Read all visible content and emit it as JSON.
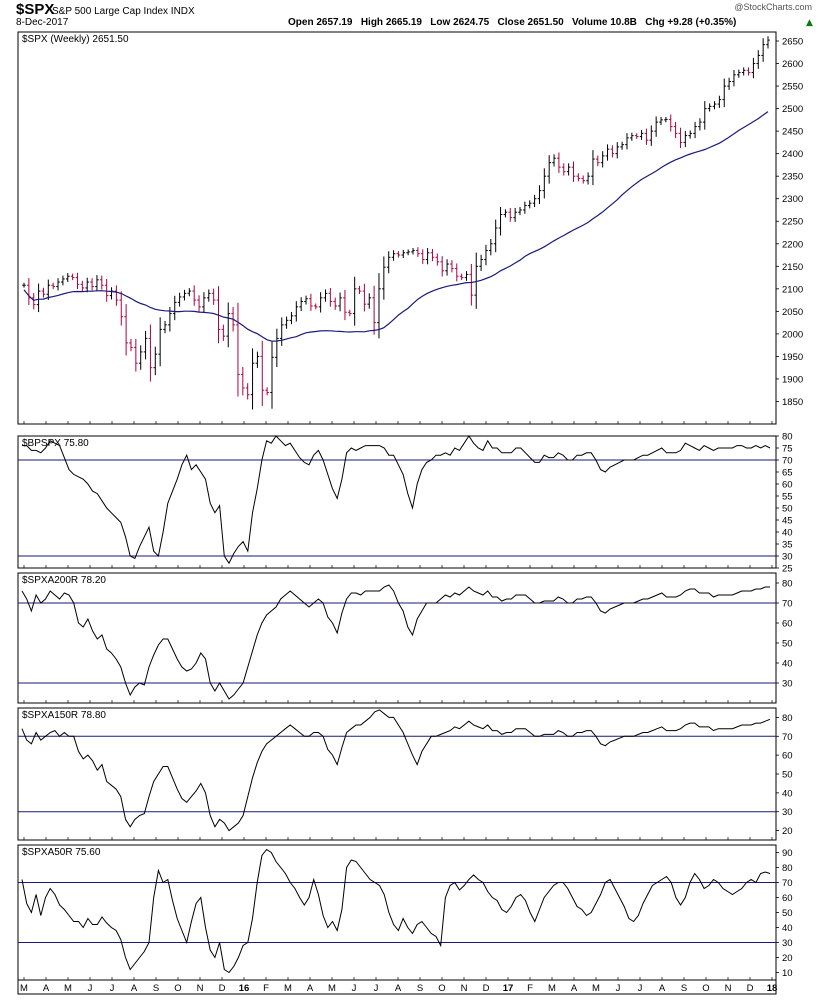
{
  "header": {
    "symbol": "$SPX",
    "name": "S&P 500 Large Cap Index",
    "exchange": "INDX",
    "date": "8-Dec-2017",
    "watermark": "@StockCharts.com",
    "ohlc": "Open 2657.19   High 2665.19   Low 2624.75   Close 2651.50   Volume 10.8B   Chg +9.28 (+0.35%)"
  },
  "colors": {
    "up": "#000000",
    "down": "#b00040",
    "ma": "#1a1a7a",
    "refline": "#1a1a7a",
    "frame": "#000000"
  },
  "chart_data": [
    {
      "type": "candlestick",
      "title": "$SPX (Weekly) 2651.50",
      "ylim": [
        1800,
        2670
      ],
      "yticks": [
        1850,
        1900,
        1950,
        2000,
        2050,
        2100,
        2150,
        2200,
        2250,
        2300,
        2350,
        2400,
        2450,
        2500,
        2550,
        2600,
        2650
      ],
      "close": [
        2108,
        2080,
        2065,
        2095,
        2088,
        2108,
        2105,
        2115,
        2122,
        2128,
        2125,
        2110,
        2102,
        2115,
        2105,
        2120,
        2108,
        2085,
        2095,
        2075,
        2038,
        1980,
        1970,
        1935,
        1960,
        1990,
        1925,
        1955,
        2010,
        2020,
        2045,
        2070,
        2082,
        2090,
        2095,
        2075,
        2060,
        2080,
        2090,
        2075,
        2010,
        1995,
        2045,
        2020,
        1910,
        1880,
        1865,
        1935,
        1950,
        1875,
        1870,
        1948,
        1990,
        2020,
        2030,
        2040,
        2060,
        2072,
        2078,
        2062,
        2060,
        2080,
        2090,
        2072,
        2062,
        2080,
        2048,
        2045,
        2100,
        2095,
        2066,
        2080,
        2025,
        2100,
        2148,
        2170,
        2178,
        2175,
        2180,
        2182,
        2185,
        2178,
        2165,
        2180,
        2170,
        2160,
        2140,
        2155,
        2145,
        2128,
        2125,
        2132,
        2086,
        2150,
        2165,
        2185,
        2200,
        2235,
        2265,
        2270,
        2258,
        2270,
        2275,
        2285,
        2290,
        2300,
        2318,
        2350,
        2380,
        2390,
        2370,
        2360,
        2370,
        2350,
        2345,
        2340,
        2350,
        2388,
        2380,
        2395,
        2410,
        2400,
        2415,
        2420,
        2435,
        2440,
        2438,
        2445,
        2430,
        2450,
        2470,
        2475,
        2476,
        2460,
        2445,
        2425,
        2440,
        2445,
        2460,
        2470,
        2500,
        2505,
        2510,
        2520,
        2550,
        2560,
        2575,
        2580,
        2585,
        2580,
        2600,
        2618,
        2642,
        2652
      ],
      "ma_ticks": [
        "M",
        "A",
        "M",
        "J",
        "J",
        "A",
        "S",
        "O",
        "N",
        "D",
        "16",
        "F",
        "M",
        "A",
        "M",
        "J",
        "J",
        "A",
        "S",
        "O",
        "N",
        "D",
        "17",
        "F",
        "M",
        "A",
        "M",
        "J",
        "J",
        "A",
        "S",
        "O",
        "N",
        "D",
        "18"
      ]
    },
    {
      "type": "line",
      "title": "$BPSPX 75.80",
      "ylim": [
        25,
        80
      ],
      "yticks": [
        25,
        30,
        35,
        40,
        45,
        50,
        55,
        60,
        65,
        70,
        75,
        80
      ],
      "reflines": [
        70,
        30
      ],
      "values": [
        76,
        76,
        74,
        74,
        73,
        75,
        78,
        77,
        76,
        71,
        66,
        64,
        63,
        62,
        60,
        57,
        56,
        53,
        50,
        48,
        46,
        44,
        38,
        30,
        29,
        34,
        38,
        42,
        32,
        30,
        40,
        52,
        57,
        62,
        68,
        72,
        66,
        68,
        65,
        62,
        52,
        48,
        51,
        30,
        27,
        31,
        34,
        36,
        32,
        48,
        58,
        70,
        78,
        77,
        80,
        78,
        76,
        77,
        74,
        71,
        69,
        68,
        72,
        74,
        70,
        64,
        58,
        54,
        62,
        73,
        75,
        74,
        75,
        76,
        76,
        76,
        76,
        75,
        72,
        72,
        68,
        64,
        56,
        50,
        60,
        66,
        69,
        70,
        72,
        72,
        73,
        72,
        75,
        74,
        77,
        80,
        77,
        75,
        74,
        78,
        75,
        75,
        73,
        73,
        73,
        75,
        75,
        73,
        71,
        69,
        69,
        72,
        71,
        71,
        73,
        72,
        70,
        70,
        72,
        72,
        73,
        73,
        70,
        66,
        65,
        67,
        68,
        69,
        70,
        70,
        70,
        71,
        72,
        72,
        73,
        74,
        75,
        73,
        73,
        73,
        74,
        77,
        76,
        75,
        74,
        76,
        75,
        74,
        75,
        75,
        75,
        75,
        76,
        76,
        75,
        75,
        76,
        75,
        76,
        75
      ]
    },
    {
      "type": "line",
      "title": "$SPXA200R 78.20",
      "ylim": [
        20,
        85
      ],
      "yticks": [
        30,
        40,
        50,
        60,
        70,
        80
      ],
      "reflines": [
        70,
        30
      ],
      "values": [
        76,
        72,
        66,
        74,
        70,
        72,
        76,
        74,
        72,
        75,
        74,
        70,
        60,
        58,
        62,
        56,
        52,
        54,
        47,
        45,
        42,
        38,
        30,
        24,
        28,
        30,
        29,
        38,
        44,
        49,
        52,
        52,
        47,
        42,
        38,
        36,
        37,
        40,
        45,
        42,
        30,
        26,
        30,
        26,
        22,
        24,
        27,
        30,
        38,
        46,
        54,
        60,
        64,
        66,
        68,
        72,
        74,
        76,
        74,
        72,
        70,
        68,
        70,
        72,
        70,
        63,
        60,
        55,
        65,
        72,
        75,
        75,
        74,
        76,
        76,
        76,
        76,
        78,
        79,
        76,
        70,
        66,
        58,
        54,
        62,
        66,
        70,
        70,
        70,
        72,
        74,
        73,
        75,
        74,
        76,
        78,
        76,
        75,
        74,
        76,
        73,
        73,
        71,
        72,
        72,
        74,
        74,
        74,
        72,
        70,
        70,
        71,
        71,
        71,
        73,
        72,
        70,
        70,
        72,
        72,
        73,
        73,
        70,
        66,
        65,
        67,
        68,
        69,
        70,
        70,
        70,
        71,
        72,
        72,
        73,
        74,
        75,
        73,
        73,
        73,
        74,
        76,
        77,
        77,
        75,
        75,
        75,
        73,
        74,
        74,
        74,
        74,
        75,
        76,
        76,
        76,
        77,
        77,
        78,
        78
      ]
    },
    {
      "type": "line",
      "title": "$SPXA150R 78.80",
      "ylim": [
        15,
        85
      ],
      "yticks": [
        20,
        30,
        40,
        50,
        60,
        70,
        80
      ],
      "reflines": [
        70,
        30
      ],
      "values": [
        74,
        68,
        66,
        72,
        68,
        70,
        72,
        73,
        70,
        72,
        70,
        70,
        62,
        58,
        60,
        57,
        52,
        55,
        46,
        44,
        42,
        38,
        26,
        22,
        26,
        28,
        29,
        38,
        46,
        50,
        54,
        54,
        48,
        42,
        37,
        35,
        38,
        41,
        45,
        40,
        28,
        22,
        26,
        24,
        20,
        22,
        24,
        28,
        38,
        48,
        56,
        62,
        66,
        68,
        70,
        72,
        74,
        76,
        74,
        72,
        70,
        70,
        72,
        72,
        70,
        63,
        60,
        55,
        64,
        72,
        74,
        76,
        76,
        78,
        80,
        83,
        84,
        82,
        80,
        80,
        76,
        72,
        66,
        60,
        55,
        62,
        66,
        70,
        70,
        71,
        72,
        73,
        75,
        74,
        76,
        78,
        76,
        75,
        74,
        76,
        73,
        73,
        71,
        72,
        72,
        74,
        74,
        74,
        72,
        70,
        70,
        71,
        71,
        71,
        73,
        72,
        70,
        70,
        72,
        72,
        73,
        73,
        70,
        66,
        65,
        67,
        68,
        69,
        70,
        70,
        70,
        71,
        72,
        72,
        73,
        74,
        75,
        73,
        73,
        73,
        74,
        76,
        77,
        77,
        75,
        75,
        75,
        73,
        74,
        74,
        74,
        74,
        75,
        76,
        76,
        76,
        77,
        77,
        78,
        79
      ]
    },
    {
      "type": "line",
      "title": "$SPXA50R 75.60",
      "ylim": [
        5,
        95
      ],
      "yticks": [
        10,
        20,
        30,
        40,
        50,
        60,
        70,
        80,
        90
      ],
      "reflines": [
        70,
        30
      ],
      "values": [
        72,
        56,
        50,
        62,
        48,
        60,
        66,
        62,
        55,
        52,
        48,
        44,
        44,
        40,
        46,
        42,
        42,
        47,
        43,
        40,
        38,
        32,
        20,
        12,
        16,
        20,
        24,
        30,
        60,
        78,
        70,
        72,
        58,
        46,
        38,
        30,
        44,
        56,
        60,
        40,
        25,
        20,
        30,
        12,
        10,
        14,
        20,
        28,
        30,
        46,
        70,
        88,
        92,
        90,
        84,
        80,
        76,
        70,
        66,
        60,
        55,
        60,
        72,
        62,
        48,
        40,
        44,
        38,
        52,
        80,
        85,
        84,
        80,
        76,
        72,
        70,
        68,
        62,
        50,
        42,
        38,
        46,
        40,
        36,
        42,
        44,
        40,
        36,
        34,
        28,
        60,
        68,
        70,
        65,
        68,
        72,
        75,
        72,
        70,
        64,
        60,
        58,
        52,
        50,
        54,
        60,
        62,
        58,
        50,
        44,
        52,
        60,
        64,
        68,
        70,
        70,
        66,
        60,
        54,
        52,
        48,
        50,
        56,
        62,
        70,
        72,
        66,
        60,
        54,
        46,
        44,
        48,
        56,
        62,
        68,
        70,
        72,
        74,
        70,
        60,
        55,
        60,
        70,
        76,
        72,
        66,
        68,
        72,
        70,
        66,
        64,
        62,
        64,
        66,
        70,
        72,
        70,
        76,
        77,
        76
      ]
    }
  ]
}
